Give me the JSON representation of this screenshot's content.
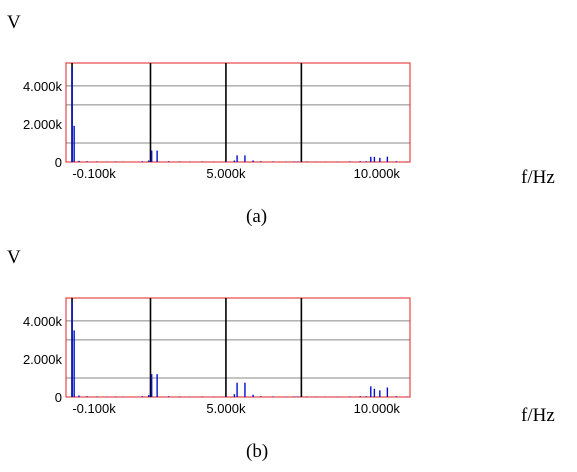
{
  "panels": [
    {
      "ylabel": "V",
      "xlabel": "f/Hz",
      "caption": "(a)",
      "chart_data": {
        "type": "bar",
        "xlim": [
          -300,
          11100
        ],
        "ylim": [
          0,
          5200
        ],
        "ytick_labels": [
          "0",
          "2.000k",
          "4.000k"
        ],
        "yticks": [
          0,
          2000,
          4000
        ],
        "xtick_labels": [
          "-0.100k",
          "5.000k",
          "10.000k"
        ],
        "xticks": [
          -100,
          5000,
          10000
        ],
        "grid_y": [
          1000,
          3000,
          4000
        ],
        "markers": [
          -100,
          2500,
          5000,
          7500
        ],
        "x": [
          -100,
          -30,
          130,
          400,
          720,
          1050,
          1340,
          1580,
          2230,
          2440,
          2540,
          2720,
          3100,
          3460,
          3800,
          4220,
          4600,
          5000,
          5280,
          5370,
          5630,
          5900,
          6150,
          6550,
          7000,
          7260,
          7380,
          7520,
          7680,
          8000,
          8300,
          8700,
          9100,
          9450,
          9650,
          9800,
          9920,
          10100,
          10350,
          10650,
          11000
        ],
        "values": [
          5000,
          1900,
          60,
          40,
          30,
          20,
          30,
          20,
          40,
          80,
          600,
          600,
          40,
          30,
          20,
          30,
          20,
          40,
          80,
          350,
          350,
          80,
          40,
          30,
          20,
          30,
          30,
          20,
          30,
          20,
          20,
          20,
          30,
          40,
          40,
          270,
          270,
          220,
          280,
          40,
          20
        ]
      }
    },
    {
      "ylabel": "V",
      "xlabel": "f/Hz",
      "caption": "(b)",
      "chart_data": {
        "type": "bar",
        "xlim": [
          -300,
          11100
        ],
        "ylim": [
          0,
          5200
        ],
        "ytick_labels": [
          "0",
          "2.000k",
          "4.000k"
        ],
        "yticks": [
          0,
          2000,
          4000
        ],
        "xtick_labels": [
          "-0.100k",
          "5.000k",
          "10.000k"
        ],
        "xticks": [
          -100,
          5000,
          10000
        ],
        "grid_y": [
          1000,
          3000,
          4000
        ],
        "markers": [
          -100,
          2500,
          5000,
          7500
        ],
        "x": [
          -100,
          -30,
          130,
          400,
          720,
          1050,
          1340,
          1580,
          2230,
          2440,
          2540,
          2720,
          3100,
          3460,
          3800,
          4220,
          4600,
          5000,
          5280,
          5370,
          5630,
          5900,
          6150,
          6550,
          7000,
          7260,
          7380,
          7520,
          7680,
          8000,
          8300,
          8700,
          9100,
          9450,
          9650,
          9800,
          9920,
          10100,
          10350,
          10650,
          11000
        ],
        "values": [
          5000,
          3500,
          80,
          40,
          30,
          20,
          30,
          20,
          40,
          100,
          1200,
          1200,
          40,
          30,
          20,
          30,
          20,
          40,
          150,
          750,
          750,
          120,
          40,
          30,
          20,
          30,
          30,
          20,
          30,
          20,
          20,
          20,
          30,
          40,
          40,
          560,
          430,
          350,
          500,
          40,
          20
        ]
      }
    }
  ]
}
